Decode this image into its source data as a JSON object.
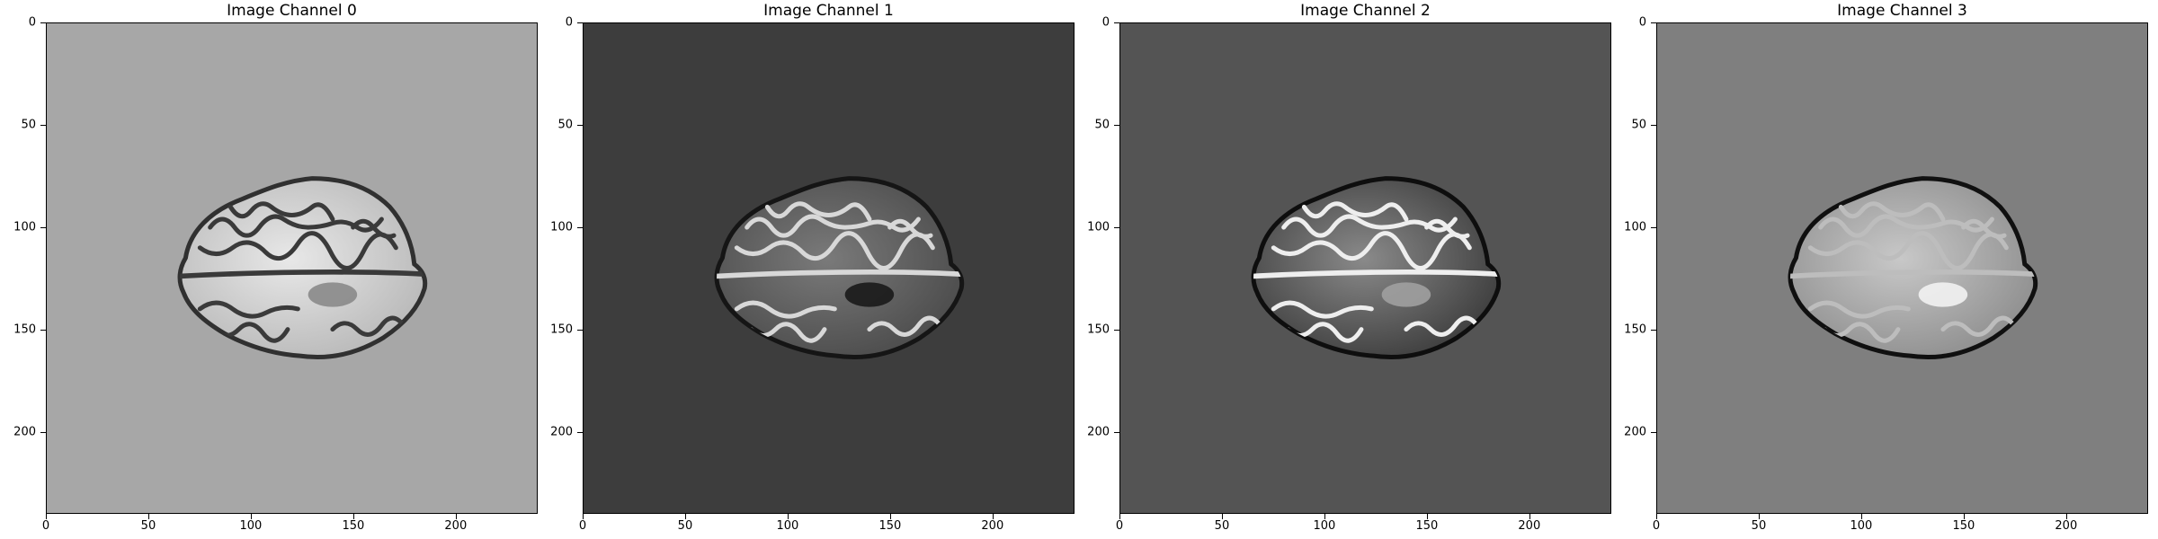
{
  "figure": {
    "panels": [
      {
        "title": "Image Channel 0",
        "background": "#a7a7a7",
        "brain_fill": "#b9b9b9",
        "brain_highlight": "#e8e8e8",
        "edge": "#303030",
        "sulci": "#3a3a3a",
        "lesion": "#8a8a8a"
      },
      {
        "title": "Image Channel 1",
        "background": "#3d3d3d",
        "brain_fill": "#4c4c4c",
        "brain_highlight": "#7a7a7a",
        "edge": "#151515",
        "sulci": "#d8d8d8",
        "lesion": "#1a1a1a"
      },
      {
        "title": "Image Channel 2",
        "background": "#545454",
        "brain_fill": "#3e3e3e",
        "brain_highlight": "#8a8a8a",
        "edge": "#0e0e0e",
        "sulci": "#eeeeee",
        "lesion": "#a0a0a0"
      },
      {
        "title": "Image Channel 3",
        "background": "#7f7f7f",
        "brain_fill": "#8f8f8f",
        "brain_highlight": "#c8c8c8",
        "edge": "#101010",
        "sulci": "#bdbdbd",
        "lesion": "#f2f2f2"
      }
    ],
    "x_ticks": [
      "0",
      "50",
      "100",
      "150",
      "200"
    ],
    "y_ticks": [
      "0",
      "50",
      "100",
      "150",
      "200"
    ],
    "axis_range": [
      0,
      240
    ]
  }
}
